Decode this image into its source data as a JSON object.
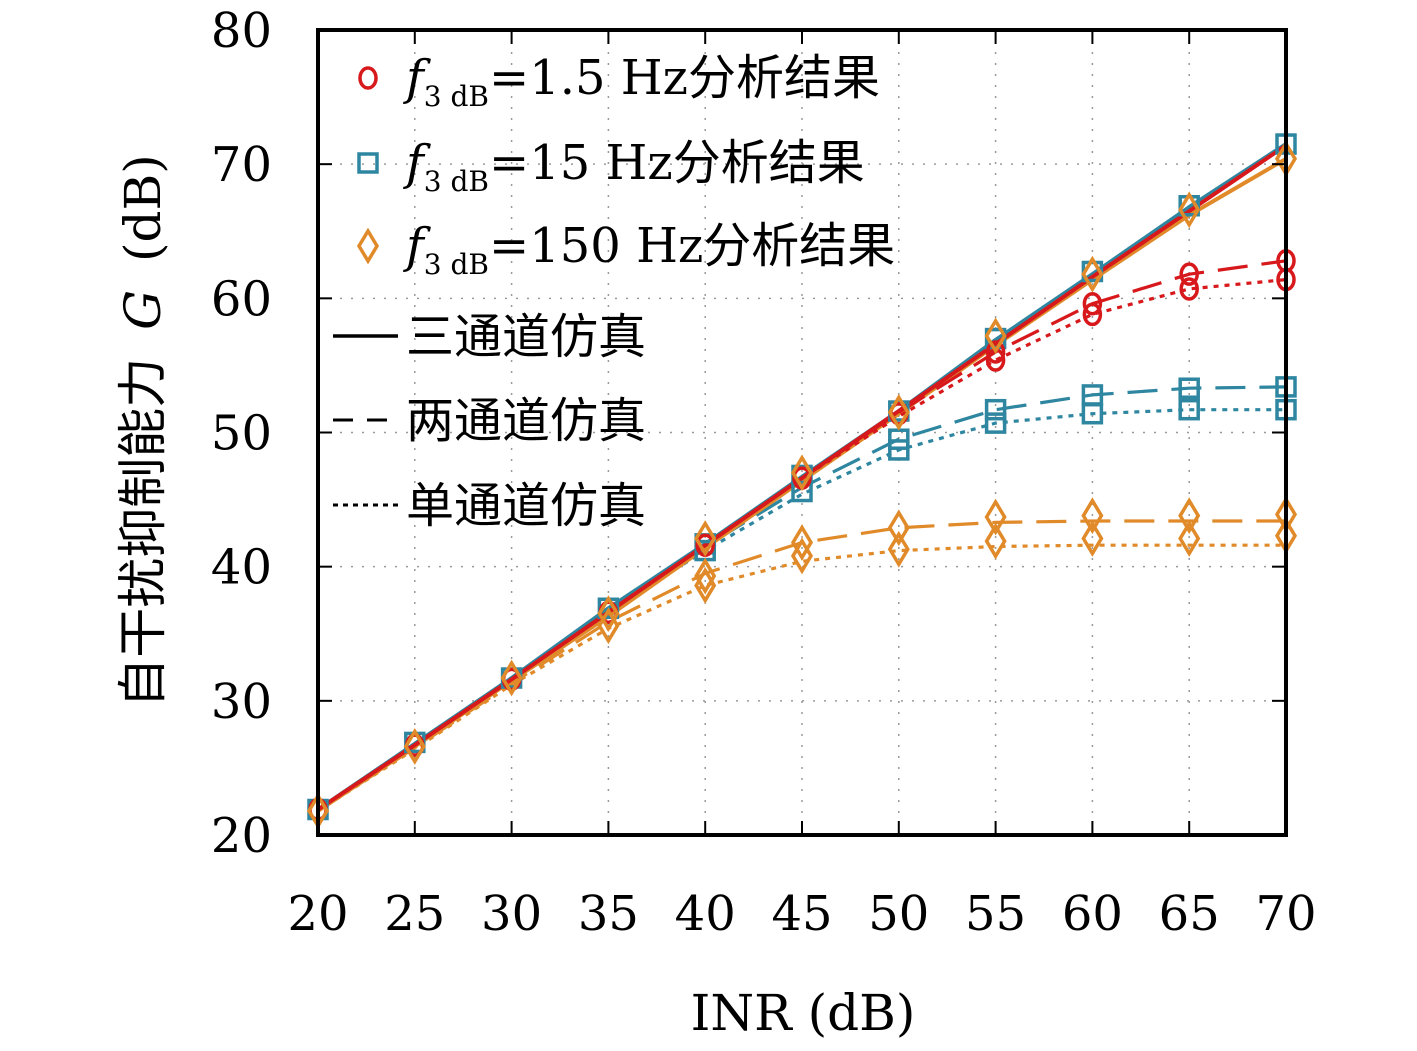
{
  "chart_data": {
    "type": "line",
    "xlabel": "INR (dB)",
    "ylabel_text": "自干扰抑制能力",
    "ylabel_symbol": "G",
    "ylabel_unit": "(dB)",
    "xlim": [
      20,
      70
    ],
    "ylim": [
      20,
      80
    ],
    "x_ticks": [
      "20",
      "25",
      "30",
      "35",
      "40",
      "45",
      "50",
      "55",
      "60",
      "65",
      "70"
    ],
    "y_ticks": [
      "20",
      "30",
      "40",
      "50",
      "60",
      "70",
      "80"
    ],
    "grid": true,
    "legend_position": "top-left",
    "x": [
      20,
      25,
      30,
      35,
      40,
      45,
      50,
      55,
      60,
      65,
      70
    ],
    "series": [
      {
        "group": "f1.5",
        "kind": "sim",
        "style": "solid",
        "color": "#d7191c",
        "values": [
          21.9,
          26.7,
          31.6,
          36.6,
          41.6,
          46.6,
          51.6,
          56.6,
          61.6,
          66.5,
          71.4
        ]
      },
      {
        "group": "f1.5",
        "kind": "sim",
        "style": "dashed",
        "color": "#d7191c",
        "values": [
          21.9,
          26.7,
          31.6,
          36.6,
          41.6,
          46.6,
          51.5,
          56.0,
          59.6,
          61.8,
          62.8
        ]
      },
      {
        "group": "f1.5",
        "kind": "sim",
        "style": "dotted",
        "color": "#d7191c",
        "values": [
          21.9,
          26.7,
          31.6,
          36.6,
          41.6,
          46.6,
          51.2,
          55.4,
          58.8,
          60.7,
          61.4
        ]
      },
      {
        "group": "f15",
        "kind": "sim",
        "style": "solid",
        "color": "#2e86a0",
        "values": [
          21.9,
          26.8,
          31.7,
          36.9,
          41.7,
          46.7,
          51.6,
          56.9,
          61.8,
          66.8,
          71.5
        ]
      },
      {
        "group": "f15",
        "kind": "sim",
        "style": "dashed",
        "color": "#2e86a0",
        "values": [
          21.9,
          26.8,
          31.7,
          36.8,
          41.5,
          45.9,
          49.5,
          51.7,
          52.8,
          53.3,
          53.4
        ]
      },
      {
        "group": "f15",
        "kind": "sim",
        "style": "dotted",
        "color": "#2e86a0",
        "values": [
          21.9,
          26.8,
          31.7,
          36.7,
          41.2,
          45.4,
          48.7,
          50.7,
          51.4,
          51.7,
          51.7
        ]
      },
      {
        "group": "f150",
        "kind": "sim",
        "style": "solid",
        "color": "#e08a2a",
        "values": [
          21.8,
          26.6,
          31.5,
          36.3,
          41.4,
          46.4,
          51.4,
          56.5,
          61.4,
          66.2,
          70.4
        ]
      },
      {
        "group": "f150",
        "kind": "sim",
        "style": "dashed",
        "color": "#e08a2a",
        "values": [
          21.8,
          26.5,
          31.3,
          35.9,
          39.5,
          41.8,
          42.9,
          43.3,
          43.4,
          43.4,
          43.4
        ]
      },
      {
        "group": "f150",
        "kind": "sim",
        "style": "dotted",
        "color": "#e08a2a",
        "values": [
          21.8,
          26.4,
          31.2,
          35.4,
          38.6,
          40.4,
          41.2,
          41.5,
          41.6,
          41.6,
          41.6
        ]
      },
      {
        "group": "f1.5",
        "kind": "analysis",
        "marker": "circle",
        "color": "#d7191c",
        "points": [
          [
            20,
            21.9
          ],
          [
            25,
            26.7
          ],
          [
            30,
            31.6
          ],
          [
            35,
            36.6
          ],
          [
            40,
            41.6
          ],
          [
            45,
            46.6
          ],
          [
            50,
            51.4
          ],
          [
            55,
            56.0
          ],
          [
            55,
            55.4
          ],
          [
            60,
            59.6
          ],
          [
            60,
            58.8
          ],
          [
            65,
            61.8
          ],
          [
            65,
            60.7
          ],
          [
            70,
            62.8
          ],
          [
            70,
            61.4
          ]
        ]
      },
      {
        "group": "f15",
        "kind": "analysis",
        "marker": "square",
        "color": "#2e86a0",
        "points": [
          [
            20,
            21.9
          ],
          [
            25,
            26.9
          ],
          [
            30,
            31.7
          ],
          [
            35,
            36.9
          ],
          [
            40,
            41.7
          ],
          [
            40,
            41.2
          ],
          [
            45,
            46.8
          ],
          [
            45,
            45.6
          ],
          [
            50,
            49.5
          ],
          [
            50,
            48.7
          ],
          [
            55,
            51.7
          ],
          [
            55,
            50.7
          ],
          [
            60,
            52.8
          ],
          [
            60,
            51.4
          ],
          [
            65,
            53.3
          ],
          [
            65,
            51.7
          ],
          [
            70,
            53.4
          ],
          [
            70,
            51.7
          ],
          [
            50,
            51.6
          ],
          [
            55,
            57.0
          ],
          [
            60,
            62.0
          ],
          [
            65,
            66.9
          ],
          [
            70,
            71.5
          ]
        ]
      },
      {
        "group": "f150",
        "kind": "analysis",
        "marker": "diamond",
        "color": "#e08a2a",
        "points": [
          [
            20,
            21.8
          ],
          [
            25,
            26.6
          ],
          [
            30,
            31.7
          ],
          [
            35,
            36.5
          ],
          [
            35,
            35.6
          ],
          [
            40,
            42.1
          ],
          [
            40,
            39.3
          ],
          [
            40,
            38.6
          ],
          [
            45,
            47.0
          ],
          [
            45,
            41.8
          ],
          [
            45,
            40.8
          ],
          [
            50,
            51.5
          ],
          [
            50,
            42.9
          ],
          [
            50,
            41.3
          ],
          [
            55,
            57.2
          ],
          [
            55,
            43.7
          ],
          [
            55,
            41.9
          ],
          [
            60,
            61.8
          ],
          [
            60,
            43.8
          ],
          [
            60,
            42.1
          ],
          [
            65,
            66.6
          ],
          [
            65,
            43.8
          ],
          [
            65,
            42.1
          ],
          [
            70,
            70.4
          ],
          [
            70,
            43.9
          ],
          [
            70,
            42.3
          ]
        ]
      }
    ],
    "legend": [
      {
        "marker": "circle",
        "color": "#d7191c",
        "label_sym": "f",
        "label_sub": "3 dB",
        "label_rest": "=1.5 Hz分析结果"
      },
      {
        "marker": "square",
        "color": "#2e86a0",
        "label_sym": "f",
        "label_sub": "3 dB",
        "label_rest": "=15 Hz分析结果"
      },
      {
        "marker": "diamond",
        "color": "#e08a2a",
        "label_sym": "f",
        "label_sub": "3 dB",
        "label_rest": "=150 Hz分析结果"
      },
      {
        "line": "solid",
        "color": "#000000",
        "label": "三通道仿真"
      },
      {
        "line": "dashed",
        "color": "#000000",
        "label": "两通道仿真"
      },
      {
        "line": "dotted",
        "color": "#000000",
        "label": "单通道仿真"
      }
    ]
  }
}
